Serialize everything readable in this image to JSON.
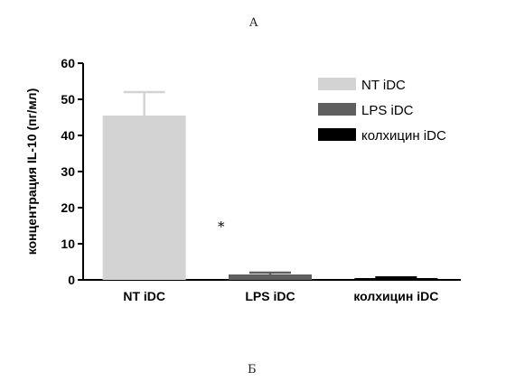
{
  "panel_labels": {
    "top": "A",
    "bottom": "Б"
  },
  "chart_data": {
    "type": "bar",
    "categories": [
      "NT iDC",
      "LPS iDC",
      "колхицин iDC"
    ],
    "values": [
      45.5,
      1.5,
      0.5
    ],
    "errors": [
      6.5,
      0.5,
      0.2
    ],
    "colors": [
      "#d3d3d3",
      "#5f5f5f",
      "#000000"
    ],
    "legend": [
      "NT iDC",
      "LPS iDC",
      "колхицин iDC"
    ],
    "legend_position": "top-right",
    "title": "",
    "xlabel": "",
    "ylabel": "концентрация IL-10 (пг/мл)",
    "ylim": [
      0,
      60
    ],
    "yticks": [
      0,
      10,
      20,
      30,
      40,
      50,
      60
    ],
    "annotation": {
      "text": "*",
      "x_category": "LPS iDC",
      "y": 16
    },
    "grid": false
  }
}
